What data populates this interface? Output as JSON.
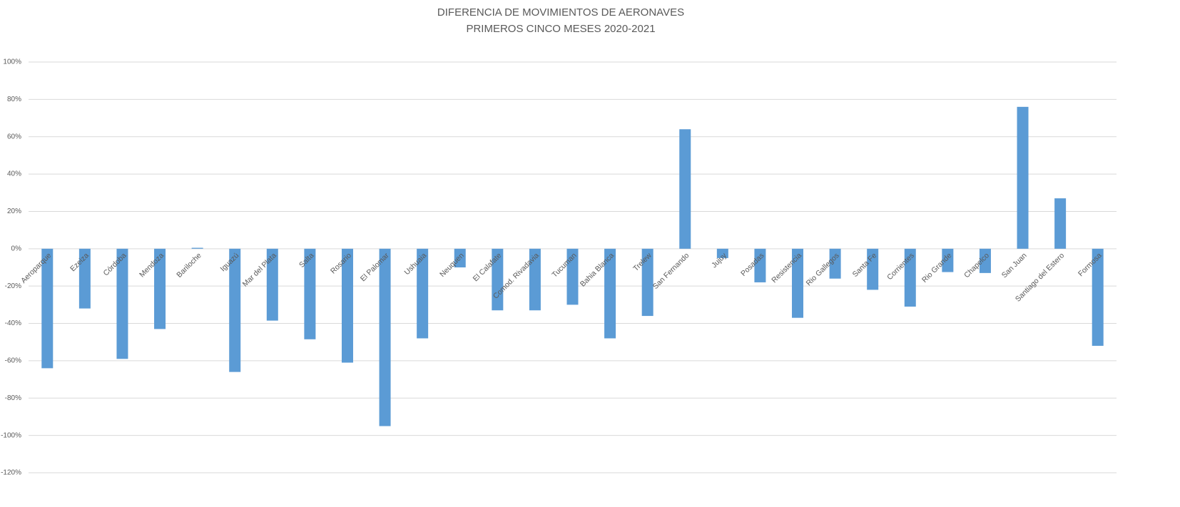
{
  "chart_data": {
    "type": "bar",
    "title": "DIFERENCIA DE MOVIMIENTOS DE AERONAVES",
    "subtitle": "PRIMEROS CINCO MESES 2020-2021",
    "categories": [
      "Aeroparque",
      "Ezeiza",
      "Córdoba",
      "Mendoza",
      "Bariloche",
      "Iguazú",
      "Mar del Plata",
      "Salta",
      "Rosario",
      "El Palomar",
      "Ushuaia",
      "Neuquen",
      "El Calafate",
      "Comod. Rivadavia",
      "Tucuman",
      "Bahia Blanca",
      "Trelew",
      "San Fernando",
      "Jujuy",
      "Posadas",
      "Resistencia",
      "Rio Gallegos",
      "Santa Fe",
      "Corrientes",
      "Rio Grande",
      "Chapelco",
      "San Juan",
      "Santiago del Estero",
      "Formosa"
    ],
    "values": [
      -64,
      -32,
      -59,
      -43,
      0.5,
      -66,
      -38.5,
      -48.5,
      -61,
      -95,
      -48,
      -10,
      -33,
      -33,
      -30,
      -48,
      -36,
      64,
      -5,
      -18,
      -37,
      -16,
      -22,
      -31,
      -12.5,
      -13,
      76,
      27,
      -52
    ],
    "color": "#5b9bd5",
    "ylim": [
      -120,
      100
    ],
    "yticks": [
      {
        "value": -120,
        "label": "-120%"
      },
      {
        "value": -100,
        "label": "-100%"
      },
      {
        "value": -80,
        "label": "-80%"
      },
      {
        "value": -60,
        "label": "-60%"
      },
      {
        "value": -40,
        "label": "-40%"
      },
      {
        "value": -20,
        "label": "-20%"
      },
      {
        "value": 0,
        "label": "0%"
      },
      {
        "value": 20,
        "label": "20%"
      },
      {
        "value": 40,
        "label": "40%"
      },
      {
        "value": 60,
        "label": "60%"
      },
      {
        "value": 80,
        "label": "80%"
      },
      {
        "value": 100,
        "label": "100%"
      }
    ],
    "grid": true
  }
}
